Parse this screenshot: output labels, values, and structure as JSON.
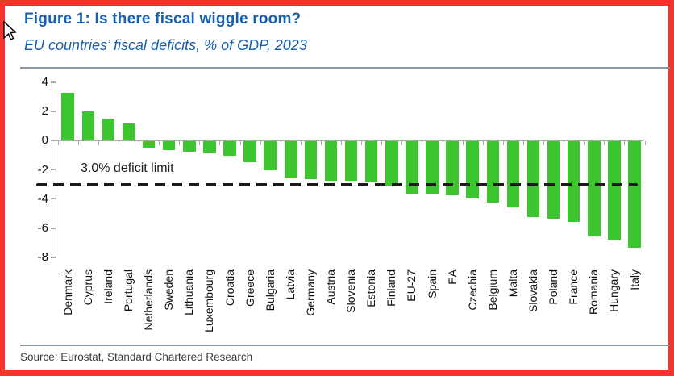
{
  "figure": {
    "title": "Figure 1: Is there fiscal wiggle room?",
    "subtitle": "EU countries’ fiscal deficits, % of GDP, 2023",
    "source": "Source: Eurostat, Standard Chartered Research"
  },
  "annotation": {
    "deficit_limit_label": "3.0% deficit limit",
    "deficit_limit_value": -3.0
  },
  "colors": {
    "frame_red": "#F5332D",
    "title_blue": "#1760AE",
    "bar_green": "#3CC52E",
    "axis_gray": "#A9A9A9",
    "reference_black": "#1A1A1A",
    "source_gray": "#3D3D3D"
  },
  "icons": {
    "cursor": "mouse-pointer-arrow"
  },
  "chart_data": {
    "type": "bar",
    "title": "EU countries’ fiscal deficits, % of GDP, 2023",
    "xlabel": "",
    "ylabel": "% of GDP",
    "ylim": [
      -8,
      4
    ],
    "yticks": [
      4,
      2,
      0,
      -2,
      -4,
      -6,
      -8
    ],
    "grid": "zero-line-only",
    "legend": "none",
    "reference_line": {
      "value": -3.0,
      "label": "3.0% deficit limit",
      "style": "dashed",
      "color": "#1A1A1A"
    },
    "categories": [
      "Denmark",
      "Cyprus",
      "Ireland",
      "Portugal",
      "Netherlands",
      "Sweden",
      "Lithuania",
      "Luxembourg",
      "Croatia",
      "Greece",
      "Bulgaria",
      "Latvia",
      "Germany",
      "Austria",
      "Slovenia",
      "Estonia",
      "Finland",
      "EU-27",
      "Spain",
      "EA",
      "Czechia",
      "Belgium",
      "Malta",
      "Slovakia",
      "Poland",
      "France",
      "Romania",
      "Hungary",
      "Italy"
    ],
    "values": [
      3.3,
      2.0,
      1.5,
      1.2,
      -0.4,
      -0.6,
      -0.7,
      -0.8,
      -1.0,
      -1.4,
      -2.0,
      -2.5,
      -2.6,
      -2.7,
      -2.7,
      -2.8,
      -3.0,
      -3.6,
      -3.6,
      -3.7,
      -3.9,
      -4.2,
      -4.5,
      -5.2,
      -5.3,
      -5.5,
      -6.5,
      -6.8,
      -7.3
    ]
  }
}
